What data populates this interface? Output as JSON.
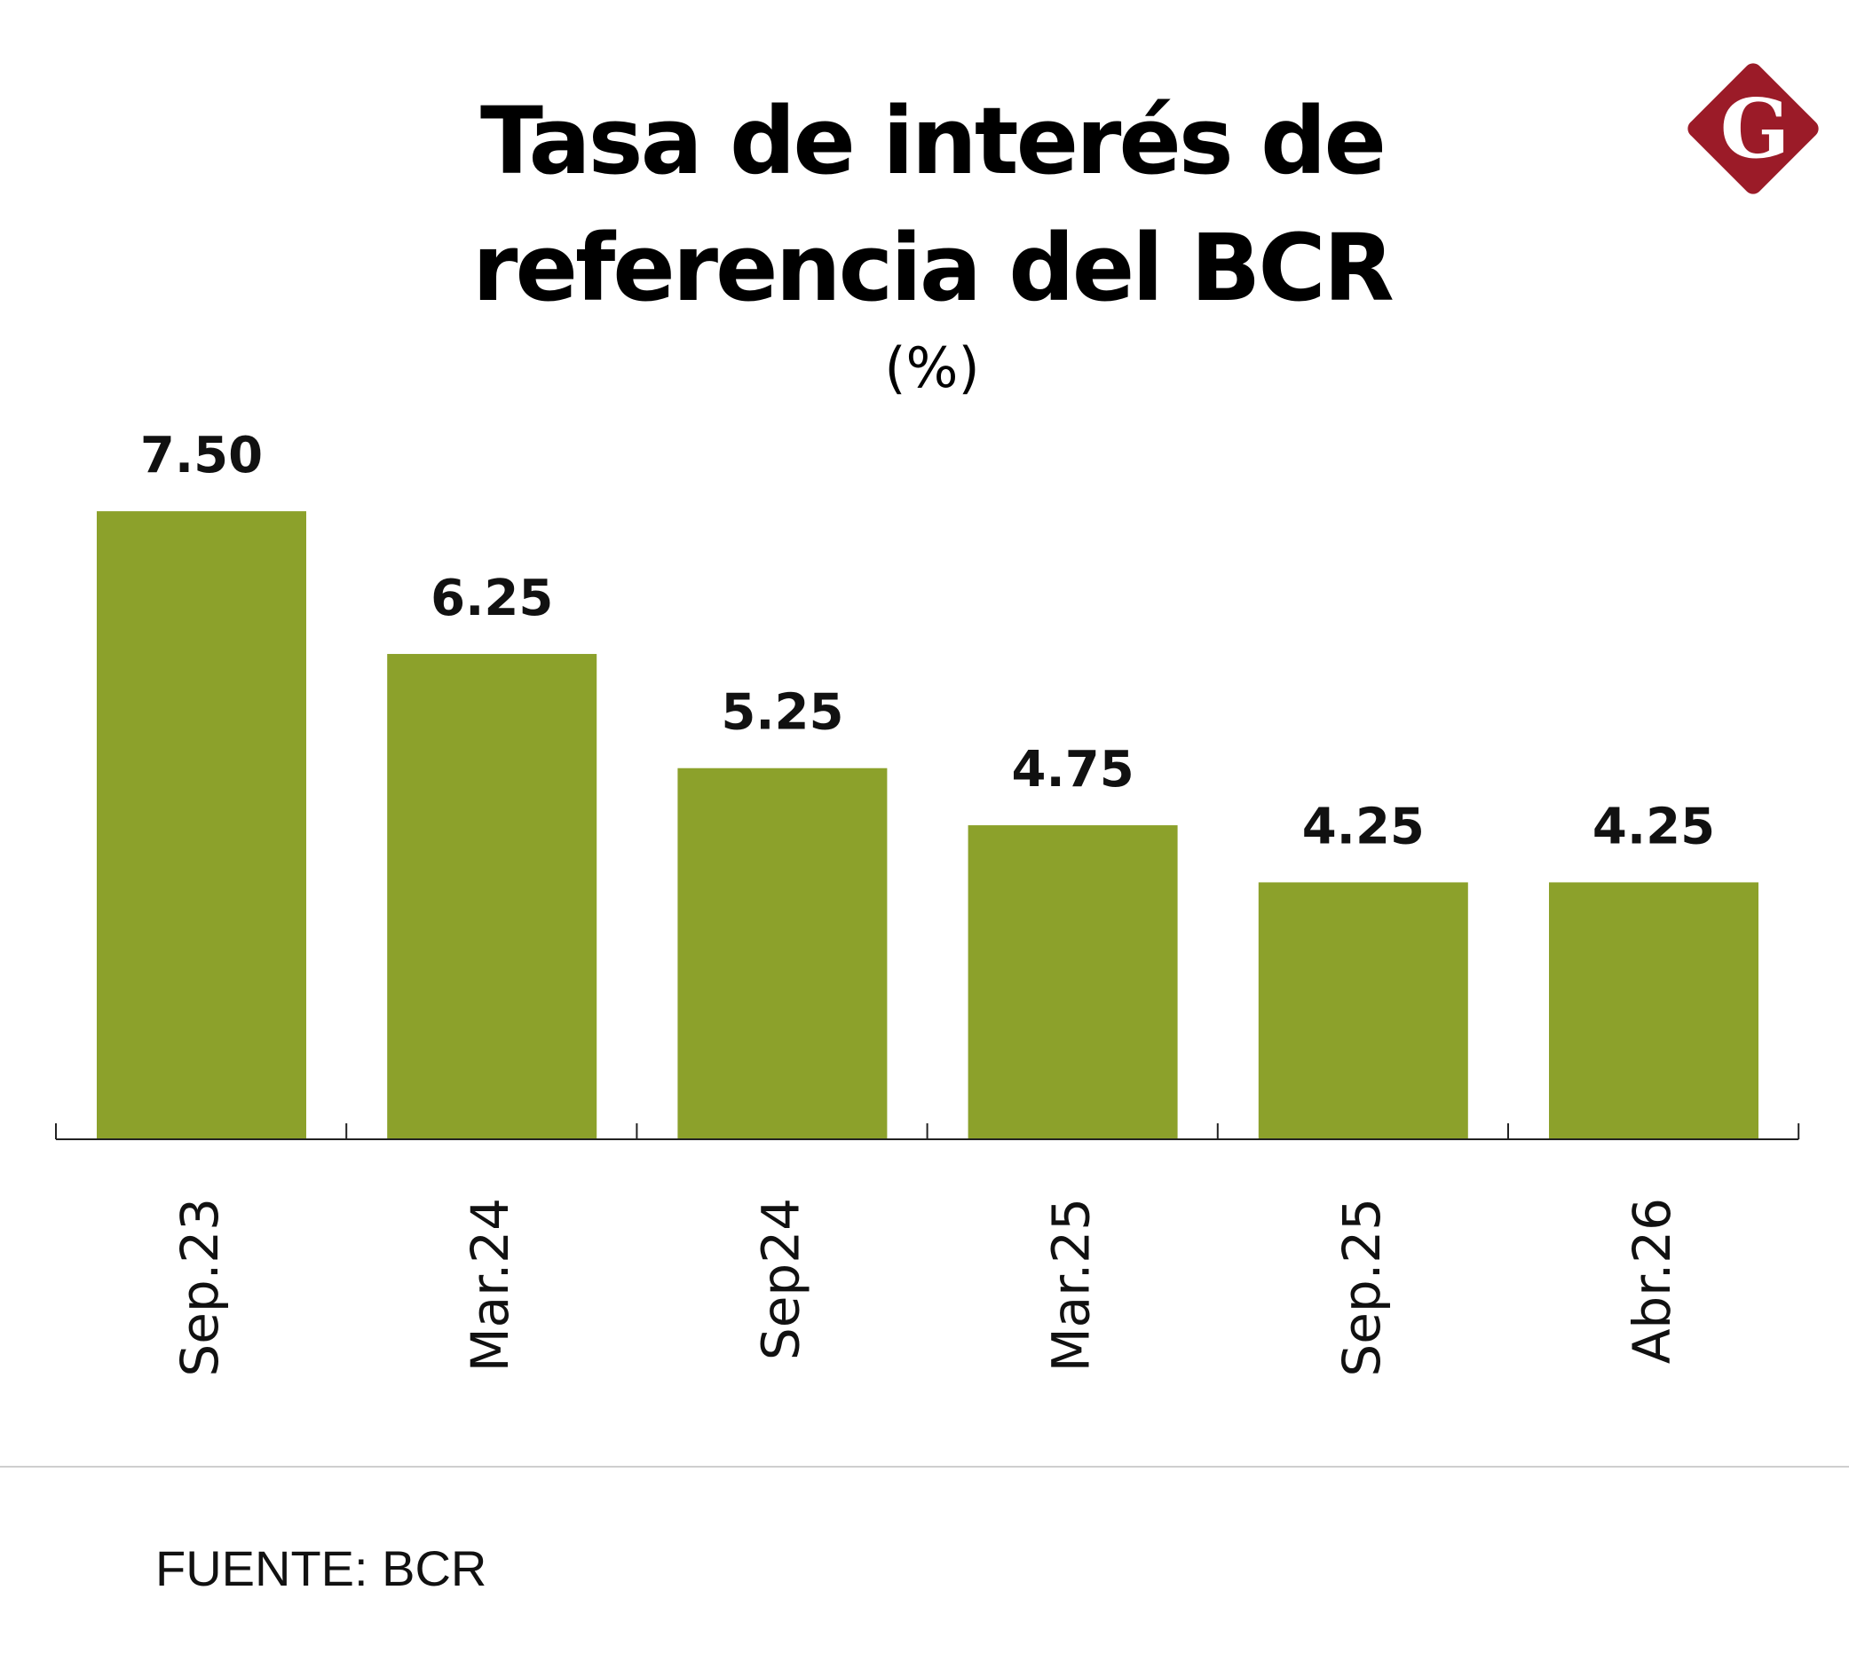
{
  "chart_data": {
    "type": "bar",
    "title": "Tasa de interés de referencia del BCR",
    "title_lines": [
      "Tasa de interés de",
      "referencia del BCR"
    ],
    "subtitle": "(%)",
    "categories": [
      "Sep.23",
      "Mar.24",
      "Sep24",
      "Mar.25",
      "Sep.25",
      "Abr.26"
    ],
    "values": [
      7.5,
      6.25,
      5.25,
      4.75,
      4.25,
      4.25
    ],
    "data_labels": [
      "7.50",
      "6.25",
      "5.25",
      "4.75",
      "4.25",
      "4.25"
    ],
    "xlabel": "",
    "ylabel": "",
    "ylim": [
      2,
      7.5
    ],
    "grid": false,
    "legend": "none",
    "bar_color": "#8ca12b"
  },
  "footer": {
    "source": "FUENTE: BCR"
  },
  "logo": {
    "letter": "G",
    "color": "#9b1b28"
  }
}
